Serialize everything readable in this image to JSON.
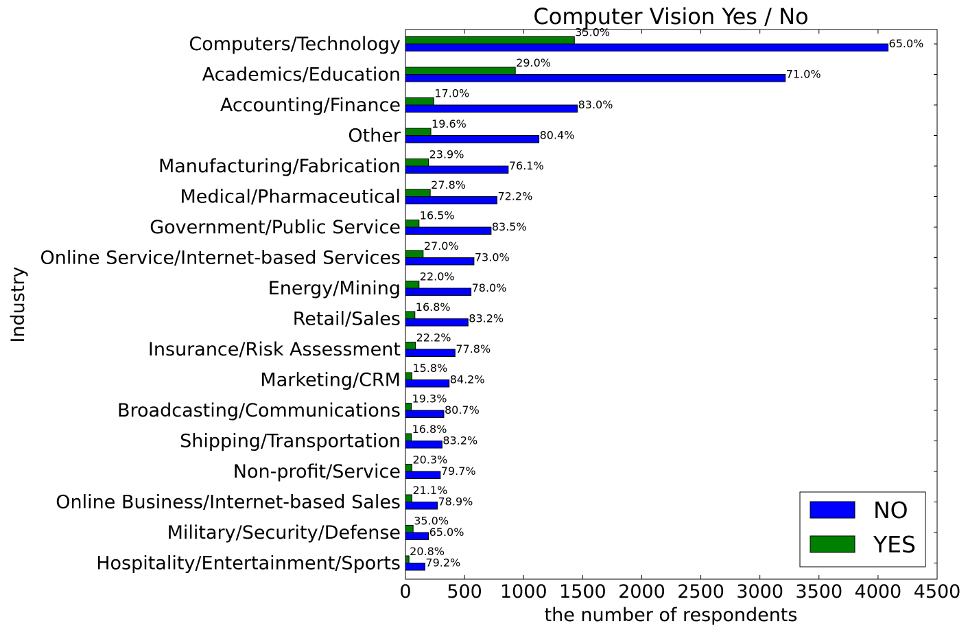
{
  "chart_data": {
    "type": "bar",
    "orientation": "horizontal",
    "title": "Computer Vision Yes / No",
    "xlabel": "the number of respondents",
    "ylabel": "Industry",
    "xlim": [
      0,
      4500
    ],
    "xticks": [
      0,
      500,
      1000,
      1500,
      2000,
      2500,
      3000,
      3500,
      4000,
      4500
    ],
    "grid": false,
    "legend_position": "lower-right",
    "categories": [
      "Computers/Technology",
      "Academics/Education",
      "Accounting/Finance",
      "Other",
      "Manufacturing/Fabrication",
      "Medical/Pharmaceutical",
      "Government/Public Service",
      "Online Service/Internet-based Services",
      "Energy/Mining",
      "Retail/Sales",
      "Insurance/Risk Assessment",
      "Marketing/CRM",
      "Broadcasting/Communications",
      "Shipping/Transportation",
      "Non-profit/Service",
      "Online Business/Internet-based Sales",
      "Military/Security/Defense",
      "Hospitality/Entertainment/Sports"
    ],
    "series": [
      {
        "name": "NO",
        "color": "#0000ff",
        "values": [
          4085,
          3215,
          1455,
          1130,
          870,
          775,
          725,
          580,
          555,
          530,
          420,
          370,
          325,
          310,
          295,
          270,
          195,
          165
        ],
        "labels": [
          "65.0%",
          "71.0%",
          "83.0%",
          "80.4%",
          "76.1%",
          "72.2%",
          "83.5%",
          "73.0%",
          "78.0%",
          "83.2%",
          "77.8%",
          "84.2%",
          "80.7%",
          "83.2%",
          "79.7%",
          "78.9%",
          "65.0%",
          "79.2%"
        ]
      },
      {
        "name": "YES",
        "color": "#008000",
        "values": [
          1430,
          930,
          240,
          215,
          195,
          210,
          115,
          150,
          115,
          80,
          85,
          55,
          50,
          50,
          55,
          55,
          65,
          30
        ],
        "labels": [
          "35.0%",
          "29.0%",
          "17.0%",
          "19.6%",
          "23.9%",
          "27.8%",
          "16.5%",
          "27.0%",
          "22.0%",
          "16.8%",
          "22.2%",
          "15.8%",
          "19.3%",
          "16.8%",
          "20.3%",
          "21.1%",
          "35.0%",
          "20.8%"
        ]
      }
    ]
  }
}
